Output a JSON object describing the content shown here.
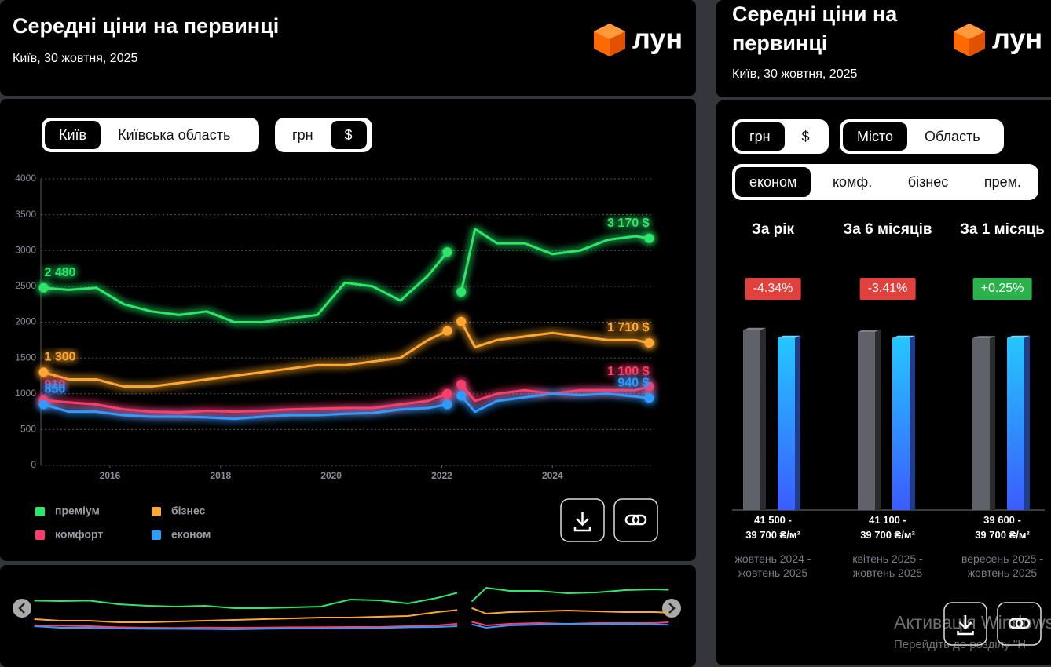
{
  "left_panel": {
    "title": "Середні ціни на первинці",
    "date": "Київ, 30 жовтня, 2025",
    "logo": "лун",
    "region_toggle": [
      "Київ",
      "Київська область"
    ],
    "currency_toggle": [
      "грн",
      "$"
    ]
  },
  "chart_data": [
    {
      "type": "line",
      "x": [
        2014.8,
        2015.25,
        2015.75,
        2016.25,
        2016.75,
        2017.25,
        2017.75,
        2018.25,
        2018.75,
        2019.25,
        2019.75,
        2020.25,
        2020.75,
        2021.25,
        2021.75,
        2022.1,
        2022.25,
        2022.35,
        2022.6,
        2023.0,
        2023.5,
        2024.0,
        2024.5,
        2025.0,
        2025.5,
        2025.75
      ],
      "xlim": [
        2014.75,
        2025.8
      ],
      "xticks": [
        2016,
        2018,
        2020,
        2022,
        2024
      ],
      "ylim": [
        0,
        4000
      ],
      "yticks": [
        0,
        500,
        1000,
        1500,
        2000,
        2500,
        3000,
        3500,
        4000
      ],
      "grid": true,
      "series": [
        {
          "name": "преміум",
          "color": "#2ee66b",
          "values": [
            2480,
            2450,
            2480,
            2250,
            2150,
            2100,
            2150,
            2000,
            2000,
            2050,
            2100,
            2550,
            2500,
            2300,
            2650,
            2980,
            null,
            2420,
            3300,
            3100,
            3100,
            2950,
            3000,
            3150,
            3200,
            3170
          ],
          "value_labels": [
            "2 480",
            null,
            null,
            null,
            null,
            null,
            null,
            null,
            null,
            null,
            null,
            null,
            null,
            null,
            null,
            null,
            null,
            null,
            null,
            null,
            null,
            null,
            null,
            null,
            null,
            "3 170 $"
          ]
        },
        {
          "name": "бізнес",
          "color": "#ffa733",
          "values": [
            1300,
            1200,
            1200,
            1100,
            1100,
            1150,
            1200,
            1250,
            1300,
            1350,
            1400,
            1400,
            1450,
            1500,
            1750,
            1880,
            null,
            2010,
            1650,
            1750,
            1800,
            1850,
            1800,
            1750,
            1750,
            1710
          ],
          "value_labels": [
            "1 300",
            null,
            null,
            null,
            null,
            null,
            null,
            null,
            null,
            null,
            null,
            null,
            null,
            null,
            null,
            null,
            null,
            null,
            null,
            null,
            null,
            null,
            null,
            null,
            null,
            "1 710 $"
          ]
        },
        {
          "name": "комфорт",
          "color": "#ff3d6b",
          "values": [
            910,
            880,
            850,
            780,
            750,
            740,
            760,
            750,
            760,
            780,
            790,
            800,
            800,
            850,
            900,
            1000,
            null,
            1130,
            900,
            1000,
            1050,
            1000,
            1050,
            1050,
            1050,
            1100
          ],
          "value_labels": [
            "910",
            null,
            null,
            null,
            null,
            null,
            null,
            null,
            null,
            null,
            null,
            null,
            null,
            null,
            null,
            null,
            null,
            null,
            null,
            null,
            null,
            null,
            null,
            null,
            null,
            "1 100 $"
          ]
        },
        {
          "name": "економ",
          "color": "#2f9bff",
          "values": [
            850,
            750,
            750,
            700,
            680,
            680,
            670,
            650,
            680,
            700,
            700,
            720,
            730,
            780,
            800,
            850,
            null,
            970,
            750,
            900,
            950,
            1000,
            980,
            1000,
            960,
            940
          ],
          "value_labels": [
            "850",
            null,
            null,
            null,
            null,
            null,
            null,
            null,
            null,
            null,
            null,
            null,
            null,
            null,
            null,
            null,
            null,
            null,
            null,
            null,
            null,
            null,
            null,
            null,
            null,
            "940 $"
          ]
        }
      ]
    },
    {
      "type": "bar",
      "categories": [
        "За рік",
        "За 6 місяців",
        "За 1 місяць"
      ],
      "ylim": [
        0,
        42000
      ],
      "series": [
        {
          "color": "#5f6268",
          "values": [
            41500,
            41100,
            39600
          ]
        },
        {
          "color": "#24c6ff",
          "values": [
            39700,
            39700,
            39700
          ]
        }
      ]
    }
  ],
  "right_panel": {
    "title": "Середні ціни на первинці",
    "date": "Київ, 30 жовтня, 2025",
    "logo": "лун",
    "currency_toggle": [
      "грн",
      "$"
    ],
    "area_toggle": [
      "Місто",
      "Область"
    ],
    "class_toggle": [
      "економ",
      "комф.",
      "бізнес",
      "прем."
    ],
    "change_labels": [
      "-4.34%",
      "-3.41%",
      "+0.25%"
    ],
    "price_labels": [
      "41 500 -\n39 700 ₴/м²",
      "41 100 -\n39 700 ₴/м²",
      "39 600 -\n39 700 ₴/м²"
    ],
    "period_labels": [
      "жовтень 2024 -\nжовтень 2025",
      "квітень 2025 -\nжовтень 2025",
      "вересень 2025 -\nжовтень 2025"
    ]
  },
  "watermark": {
    "title": "Активація Windows",
    "subtitle": "Перейдіть до розділу \"Н"
  }
}
